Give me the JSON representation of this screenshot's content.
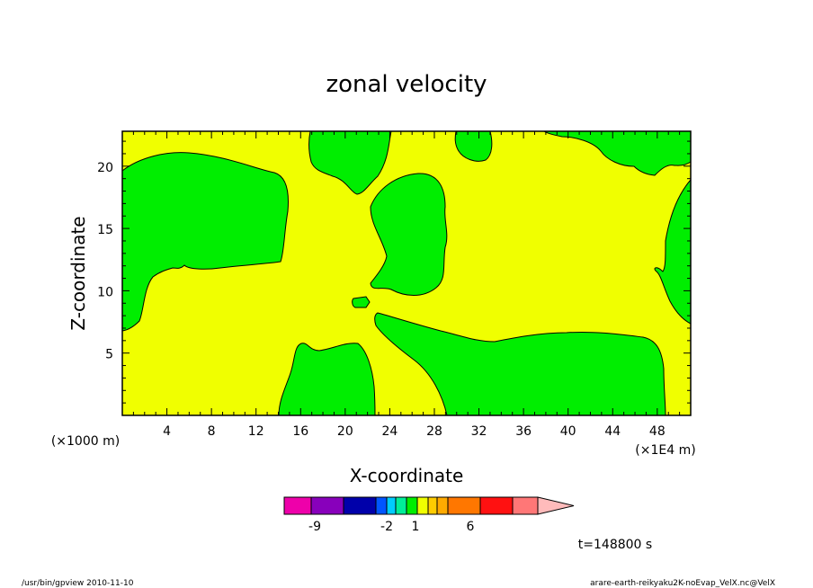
{
  "chart_data": {
    "type": "heatmap",
    "title": "zonal velocity",
    "xlabel": "X-coordinate",
    "ylabel": "Z-coordinate",
    "x_units_left": "(×1000 m)",
    "x_units_right": "(×1E4 m)",
    "xlim": [
      0,
      51
    ],
    "ylim": [
      0,
      22.8
    ],
    "x_ticks": [
      4,
      8,
      12,
      16,
      20,
      24,
      28,
      32,
      36,
      40,
      44,
      48
    ],
    "y_ticks": [
      5,
      10,
      15,
      20
    ],
    "background_level_color": "#f0ff00",
    "region_color": "#00ee00",
    "colorbar": {
      "colors": [
        "#ee00aa",
        "#8800bb",
        "#0000aa",
        "#0055ff",
        "#00ccff",
        "#00ee99",
        "#00ee00",
        "#f0ff00",
        "#ffcc00",
        "#ffaa00",
        "#ff7700",
        "#ff1111",
        "#ff7777",
        "#ffbbbb"
      ],
      "labels": [
        "-9",
        "-2",
        "1",
        "6"
      ]
    },
    "time_label": "t=148800 s"
  },
  "footer": {
    "left": "/usr/bin/gpview  2010-11-10",
    "right": "arare-earth-reikyaku2K-noEvap_VelX.nc@VelX"
  }
}
